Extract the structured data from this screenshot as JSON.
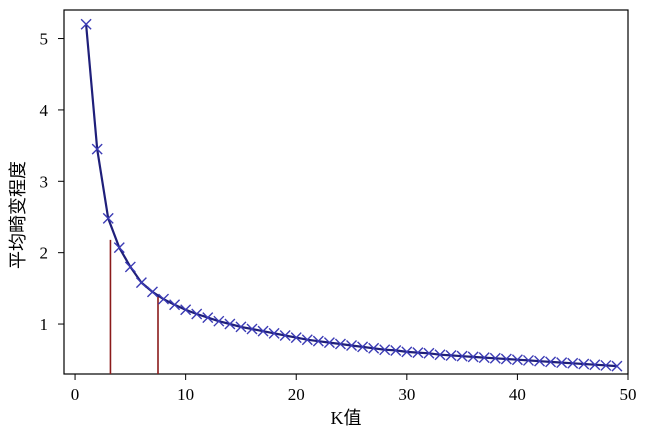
{
  "chart_data": {
    "type": "line",
    "title": "",
    "xlabel": "K值",
    "ylabel": "平均畸变程度",
    "xlim": [
      -1,
      50
    ],
    "ylim": [
      0.3,
      5.4
    ],
    "xticks": [
      0,
      10,
      20,
      30,
      40,
      50
    ],
    "yticks": [
      1,
      2,
      3,
      4,
      5
    ],
    "grid": false,
    "legend": "none",
    "marker": "x",
    "colors": {
      "line": "#1f1f7a",
      "marker": "#3b3bb5",
      "reference": "#8b1a1a",
      "axes": "#000000"
    },
    "series": [
      {
        "x": [
          1,
          2,
          3,
          4,
          5,
          6,
          7,
          8,
          9,
          10,
          11,
          12,
          13,
          14,
          15,
          16,
          17,
          18,
          19,
          20,
          21,
          22,
          23,
          24,
          25,
          26,
          27,
          28,
          29,
          30,
          31,
          32,
          33,
          34,
          35,
          36,
          37,
          38,
          39,
          40,
          41,
          42,
          43,
          44,
          45,
          46,
          47,
          48,
          49
        ],
        "y": [
          5.2,
          3.45,
          2.48,
          2.07,
          1.8,
          1.58,
          1.45,
          1.35,
          1.27,
          1.2,
          1.14,
          1.09,
          1.04,
          1.0,
          0.96,
          0.93,
          0.9,
          0.87,
          0.84,
          0.81,
          0.78,
          0.76,
          0.74,
          0.72,
          0.7,
          0.68,
          0.66,
          0.64,
          0.63,
          0.61,
          0.6,
          0.59,
          0.57,
          0.56,
          0.55,
          0.54,
          0.53,
          0.52,
          0.51,
          0.5,
          0.49,
          0.48,
          0.47,
          0.46,
          0.45,
          0.44,
          0.43,
          0.42,
          0.41
        ]
      }
    ],
    "reference_lines": [
      {
        "x": 3.2,
        "y": 2.18
      },
      {
        "x": 7.5,
        "y": 1.4
      }
    ]
  }
}
